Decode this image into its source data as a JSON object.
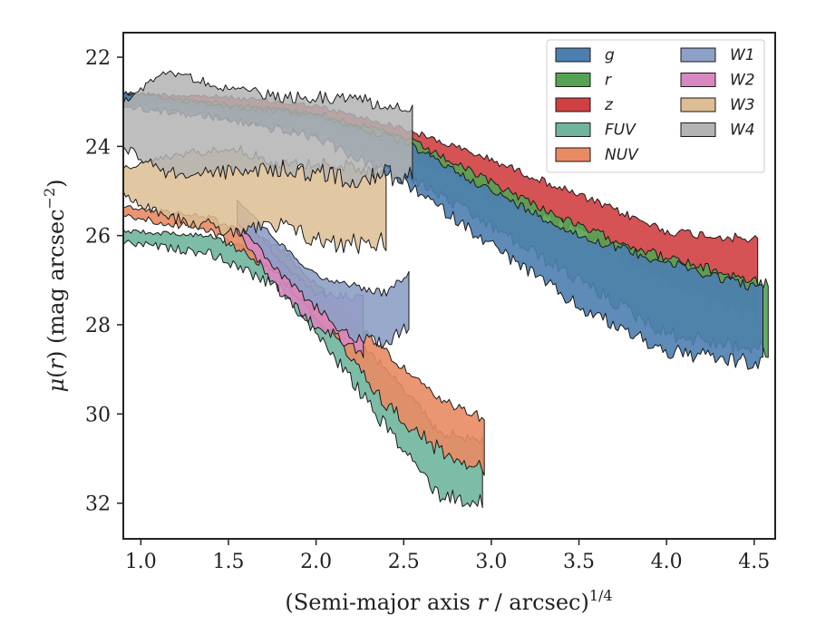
{
  "chart_data": {
    "type": "area",
    "xlabel": "(Semi-major axis r / arcsec)^{1/4}",
    "xlabel_parts": {
      "prefix": "(Semi-major axis ",
      "var": "r",
      "mid": " / arcsec)",
      "sup": "1/4"
    },
    "ylabel": "μ(r) (mag arcsec^-2)",
    "ylabel_parts": {
      "mu": "μ",
      "open": "(",
      "var": "r",
      "close": ") (mag arcsec",
      "sup": "−2",
      "end": ")"
    },
    "xlim": [
      0.9,
      4.62
    ],
    "ylim": [
      32.8,
      21.45
    ],
    "y_inverted": true,
    "x_ticks": [
      1.0,
      1.5,
      2.0,
      2.5,
      3.0,
      3.5,
      4.0,
      4.5
    ],
    "x_tick_labels": [
      "1.0",
      "1.5",
      "2.0",
      "2.5",
      "3.0",
      "3.5",
      "4.0",
      "4.5"
    ],
    "y_ticks": [
      22,
      24,
      26,
      28,
      30,
      32
    ],
    "y_tick_labels": [
      "22",
      "24",
      "26",
      "28",
      "30",
      "32"
    ],
    "grid": false,
    "legend_position": "top-right",
    "legend_columns": 2,
    "series": [
      {
        "name": "g",
        "color": "#4c7eb0",
        "x_start": 0.9,
        "x_end": 4.55,
        "upper": [
          [
            0.9,
            22.8
          ],
          [
            1.5,
            23.1
          ],
          [
            2.0,
            23.3
          ],
          [
            2.5,
            23.9
          ],
          [
            3.0,
            25.0
          ],
          [
            3.5,
            26.0
          ],
          [
            4.0,
            26.6
          ],
          [
            4.55,
            27.2
          ]
        ],
        "lower": [
          [
            0.9,
            23.1
          ],
          [
            1.5,
            23.4
          ],
          [
            2.0,
            23.8
          ],
          [
            2.5,
            24.8
          ],
          [
            3.0,
            26.2
          ],
          [
            3.5,
            27.6
          ],
          [
            4.0,
            28.6
          ],
          [
            4.55,
            28.9
          ]
        ],
        "noise": 0.25
      },
      {
        "name": "r",
        "color": "#55a352",
        "x_start": 0.9,
        "x_end": 4.58,
        "upper": [
          [
            0.9,
            22.85
          ],
          [
            1.5,
            23.05
          ],
          [
            2.0,
            23.25
          ],
          [
            2.5,
            23.8
          ],
          [
            3.0,
            24.8
          ],
          [
            3.5,
            25.8
          ],
          [
            4.0,
            26.5
          ],
          [
            4.58,
            27.1
          ]
        ],
        "lower": [
          [
            0.9,
            23.05
          ],
          [
            1.5,
            23.35
          ],
          [
            2.0,
            23.7
          ],
          [
            2.5,
            24.6
          ],
          [
            3.0,
            25.8
          ],
          [
            3.5,
            27.0
          ],
          [
            4.0,
            28.2
          ],
          [
            4.58,
            28.6
          ]
        ],
        "noise": 0.25
      },
      {
        "name": "z",
        "color": "#d03f42",
        "x_start": 0.9,
        "x_end": 4.52,
        "upper": [
          [
            0.9,
            22.8
          ],
          [
            1.5,
            22.9
          ],
          [
            2.0,
            23.1
          ],
          [
            2.5,
            23.6
          ],
          [
            3.0,
            24.3
          ],
          [
            3.5,
            25.1
          ],
          [
            4.0,
            25.9
          ],
          [
            4.52,
            26.1
          ]
        ],
        "lower": [
          [
            0.9,
            23.0
          ],
          [
            1.5,
            23.15
          ],
          [
            2.0,
            23.4
          ],
          [
            2.5,
            24.1
          ],
          [
            3.0,
            25.1
          ],
          [
            3.5,
            25.9
          ],
          [
            4.0,
            27.0
          ],
          [
            4.52,
            27.9
          ]
        ],
        "noise": 0.22
      },
      {
        "name": "FUV",
        "color": "#6fb59c",
        "x_start": 0.9,
        "x_end": 2.95,
        "upper": [
          [
            0.9,
            25.9
          ],
          [
            1.4,
            26.0
          ],
          [
            1.8,
            26.6
          ],
          [
            2.1,
            27.8
          ],
          [
            2.4,
            29.0
          ],
          [
            2.7,
            30.4
          ],
          [
            2.95,
            30.6
          ]
        ],
        "lower": [
          [
            0.9,
            26.15
          ],
          [
            1.4,
            26.4
          ],
          [
            1.8,
            27.2
          ],
          [
            2.1,
            28.7
          ],
          [
            2.4,
            30.3
          ],
          [
            2.7,
            31.8
          ],
          [
            2.95,
            32.0
          ]
        ],
        "noise": 0.25
      },
      {
        "name": "NUV",
        "color": "#e88b64",
        "x_start": 0.9,
        "x_end": 2.96,
        "upper": [
          [
            0.9,
            25.35
          ],
          [
            1.4,
            25.6
          ],
          [
            1.8,
            26.3
          ],
          [
            2.1,
            27.5
          ],
          [
            2.4,
            28.6
          ],
          [
            2.7,
            29.7
          ],
          [
            2.96,
            30.1
          ]
        ],
        "lower": [
          [
            0.9,
            25.55
          ],
          [
            1.4,
            25.9
          ],
          [
            1.8,
            26.9
          ],
          [
            2.1,
            28.3
          ],
          [
            2.4,
            29.8
          ],
          [
            2.7,
            30.8
          ],
          [
            2.96,
            31.2
          ]
        ],
        "noise": 0.25
      },
      {
        "name": "W1",
        "color": "#8da0c7",
        "x_start": 1.55,
        "x_end": 2.53,
        "upper": [
          [
            1.55,
            25.2
          ],
          [
            1.8,
            26.2
          ],
          [
            2.0,
            26.9
          ],
          [
            2.2,
            27.1
          ],
          [
            2.4,
            27.3
          ],
          [
            2.53,
            26.8
          ]
        ],
        "lower": [
          [
            1.55,
            25.7
          ],
          [
            1.8,
            26.9
          ],
          [
            2.0,
            27.6
          ],
          [
            2.2,
            28.3
          ],
          [
            2.4,
            28.4
          ],
          [
            2.53,
            28.0
          ]
        ],
        "noise": 0.2
      },
      {
        "name": "W2",
        "color": "#d887c0",
        "x_start": 1.55,
        "x_end": 2.27,
        "upper": [
          [
            1.55,
            25.4
          ],
          [
            1.8,
            26.6
          ],
          [
            2.0,
            27.3
          ],
          [
            2.27,
            27.4
          ]
        ],
        "lower": [
          [
            1.55,
            25.9
          ],
          [
            1.8,
            27.3
          ],
          [
            2.0,
            28.0
          ],
          [
            2.27,
            28.6
          ]
        ],
        "noise": 0.2
      },
      {
        "name": "W3",
        "color": "#ddbd93",
        "x_start": 0.9,
        "x_end": 2.4,
        "upper": [
          [
            0.9,
            24.5
          ],
          [
            1.2,
            24.2
          ],
          [
            1.5,
            24.0
          ],
          [
            1.8,
            24.4
          ],
          [
            2.1,
            24.4
          ],
          [
            2.4,
            24.6
          ]
        ],
        "lower": [
          [
            0.9,
            25.1
          ],
          [
            1.2,
            25.6
          ],
          [
            1.5,
            25.9
          ],
          [
            1.8,
            25.8
          ],
          [
            2.1,
            26.2
          ],
          [
            2.4,
            26.1
          ]
        ],
        "noise": 0.35
      },
      {
        "name": "W4",
        "color": "#b3b3b3",
        "x_start": 0.9,
        "x_end": 2.55,
        "upper": [
          [
            0.9,
            23.0
          ],
          [
            1.15,
            22.3
          ],
          [
            1.4,
            22.6
          ],
          [
            1.8,
            22.9
          ],
          [
            2.2,
            22.9
          ],
          [
            2.55,
            23.2
          ]
        ],
        "lower": [
          [
            0.9,
            24.0
          ],
          [
            1.15,
            24.6
          ],
          [
            1.4,
            24.6
          ],
          [
            1.8,
            24.5
          ],
          [
            2.2,
            24.7
          ],
          [
            2.55,
            24.6
          ]
        ],
        "noise": 0.35
      }
    ],
    "draw_order": [
      "z",
      "r",
      "g",
      "FUV",
      "NUV",
      "W2",
      "W1",
      "W3",
      "W4"
    ]
  }
}
